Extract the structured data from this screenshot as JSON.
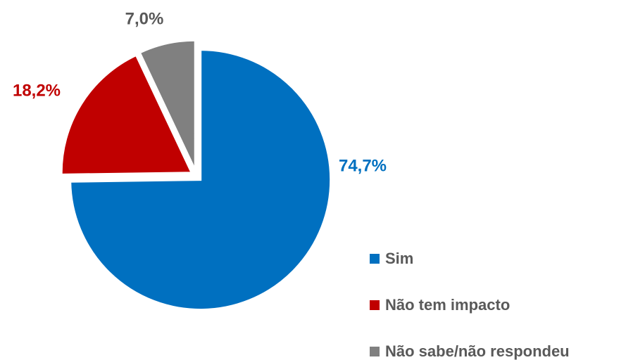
{
  "chart_data": {
    "type": "pie",
    "categories": [
      "Sim",
      "Não tem impacto",
      "Não sabe/não respondeu"
    ],
    "values": [
      74.7,
      18.2,
      7.0
    ],
    "value_labels": [
      "74,7%",
      "18,2%",
      "7,0%"
    ],
    "colors": [
      "#0070C0",
      "#C00000",
      "#808080"
    ],
    "label_colors": [
      "#0070C0",
      "#C00000",
      "#595959"
    ],
    "legend": "bottom-right"
  }
}
